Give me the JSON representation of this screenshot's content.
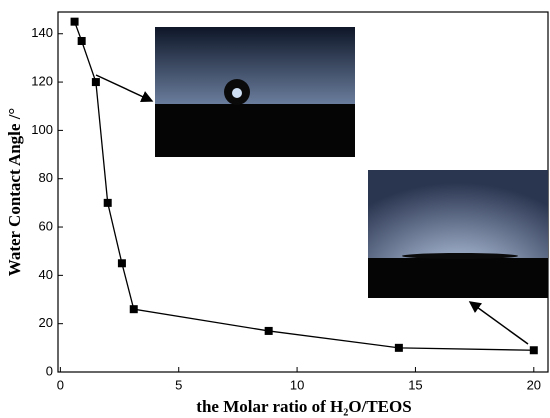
{
  "chart_data": {
    "type": "line",
    "x_label": "the Molar ratio of H₂O/TEOS",
    "y_label": "Water Contact Angle /°",
    "x": [
      0.6,
      0.9,
      1.5,
      2.0,
      2.6,
      3.1,
      8.8,
      14.3,
      20.0
    ],
    "series": [
      {
        "color": "#000000",
        "values": [
          145,
          137,
          120,
          70,
          45,
          26,
          17,
          10,
          9
        ]
      }
    ],
    "xlim": [
      -0.1,
      20.6
    ],
    "xticks": [
      0,
      5,
      10,
      15,
      20
    ],
    "ylim": [
      0,
      149
    ],
    "yticks": [
      0,
      20,
      40,
      60,
      80,
      100,
      120,
      140
    ],
    "grid": false
  }
}
